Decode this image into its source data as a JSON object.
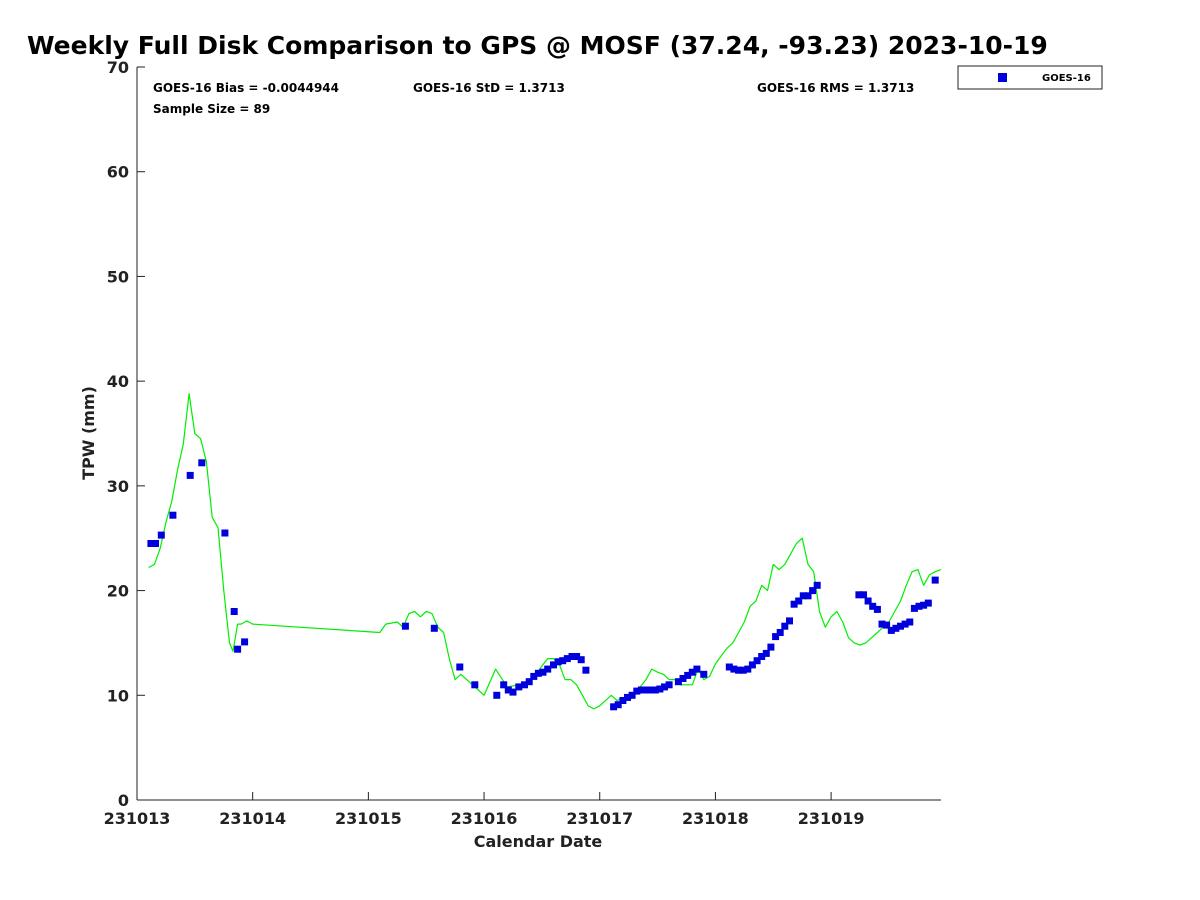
{
  "chart_data": {
    "type": "scatter",
    "title": "Weekly Full Disk Comparison to GPS @ MOSF (37.24, -93.23) 2023-10-19",
    "xlabel": "Calendar Date",
    "ylabel": "TPW (mm)",
    "xlim": [
      0,
      6.95
    ],
    "ylim": [
      0,
      70
    ],
    "y_ticks": [
      0,
      10,
      20,
      30,
      40,
      50,
      60,
      70
    ],
    "x_ticks": [
      {
        "value": 0,
        "label": "231013"
      },
      {
        "value": 1,
        "label": "231014"
      },
      {
        "value": 2,
        "label": "231015"
      },
      {
        "value": 3,
        "label": "231016"
      },
      {
        "value": 4,
        "label": "231017"
      },
      {
        "value": 5,
        "label": "231018"
      },
      {
        "value": 6,
        "label": "231019"
      }
    ],
    "stats": {
      "bias": "GOES-16 Bias = -0.0044944",
      "std": "GOES-16 StD = 1.3713",
      "rms": "GOES-16 RMS = 1.3713",
      "sample": "Sample Size = 89"
    },
    "legend": {
      "entries": [
        "GOES-16"
      ],
      "position": "outside-top-right"
    },
    "series": [
      {
        "name": "GPS",
        "kind": "line",
        "color": "#00ee00",
        "x": [
          0.1,
          0.15,
          0.2,
          0.25,
          0.3,
          0.35,
          0.4,
          0.45,
          0.5,
          0.55,
          0.6,
          0.65,
          0.7,
          0.75,
          0.8,
          0.83,
          0.87,
          0.9,
          0.95,
          1.0,
          2.1,
          2.15,
          2.25,
          2.3,
          2.35,
          2.4,
          2.45,
          2.5,
          2.55,
          2.6,
          2.65,
          2.7,
          2.75,
          2.8,
          2.85,
          2.9,
          2.95,
          3.0,
          3.1,
          3.2,
          3.3,
          3.35,
          3.4,
          3.45,
          3.5,
          3.55,
          3.6,
          3.65,
          3.7,
          3.75,
          3.8,
          3.85,
          3.9,
          3.95,
          4.0,
          4.1,
          4.15,
          4.2,
          4.25,
          4.3,
          4.35,
          4.4,
          4.45,
          4.5,
          4.55,
          4.6,
          4.65,
          4.7,
          4.75,
          4.8,
          4.85,
          4.9,
          4.95,
          5.0,
          5.1,
          5.15,
          5.2,
          5.25,
          5.3,
          5.35,
          5.4,
          5.45,
          5.5,
          5.55,
          5.6,
          5.65,
          5.7,
          5.75,
          5.8,
          5.85,
          5.9,
          5.95,
          6.0,
          6.05,
          6.1,
          6.15,
          6.2,
          6.25,
          6.3,
          6.35,
          6.4,
          6.45,
          6.5,
          6.55,
          6.6,
          6.65,
          6.7,
          6.75,
          6.8,
          6.85,
          6.9,
          6.95
        ],
        "y": [
          22.2,
          22.5,
          24.0,
          26.5,
          28.5,
          31.5,
          34.0,
          38.8,
          35.0,
          34.5,
          32.3,
          27.0,
          26.0,
          20.0,
          15.0,
          14.2,
          16.8,
          16.8,
          17.1,
          16.8,
          16.0,
          16.8,
          17.0,
          16.5,
          17.8,
          18.0,
          17.5,
          18.0,
          17.8,
          16.5,
          16.0,
          13.5,
          11.5,
          12.0,
          11.5,
          11.0,
          10.5,
          10.0,
          12.5,
          10.8,
          11.0,
          10.8,
          11.5,
          12.0,
          12.8,
          13.5,
          13.5,
          13.0,
          11.5,
          11.5,
          11.0,
          10.0,
          9.0,
          8.7,
          9.0,
          10.0,
          9.5,
          9.8,
          9.5,
          10.0,
          10.8,
          11.5,
          12.5,
          12.2,
          12.0,
          11.5,
          11.5,
          11.0,
          11.0,
          11.0,
          12.5,
          11.5,
          11.8,
          13.0,
          14.5,
          15.0,
          16.0,
          17.0,
          18.5,
          19.0,
          20.5,
          20.0,
          22.5,
          22.0,
          22.5,
          23.5,
          24.5,
          25.0,
          22.5,
          21.8,
          18.0,
          16.5,
          17.5,
          18.0,
          17.0,
          15.5,
          15.0,
          14.8,
          15.0,
          15.5,
          16.0,
          16.5,
          17.0,
          18.0,
          19.0,
          20.5,
          21.8,
          22.0,
          20.5,
          21.5,
          21.8,
          22.0
        ],
        "_note": "series illustrated"
      },
      {
        "name": "GOES-16",
        "kind": "scatter",
        "color": "#0000dd",
        "x": [
          0.12,
          0.16,
          0.21,
          0.31,
          0.46,
          0.56,
          0.76,
          0.84,
          0.87,
          0.93,
          2.32,
          2.57,
          2.79,
          2.92,
          3.11,
          3.17,
          3.21,
          3.25,
          3.3,
          3.35,
          3.39,
          3.43,
          3.47,
          3.51,
          3.55,
          3.6,
          3.64,
          3.68,
          3.72,
          3.76,
          3.8,
          3.84,
          3.88,
          4.12,
          4.16,
          4.2,
          4.24,
          4.28,
          4.32,
          4.36,
          4.4,
          4.44,
          4.48,
          4.52,
          4.56,
          4.6,
          4.68,
          4.72,
          4.76,
          4.8,
          4.84,
          4.9,
          5.12,
          5.16,
          5.2,
          5.24,
          5.28,
          5.32,
          5.36,
          5.4,
          5.44,
          5.48,
          5.52,
          5.56,
          5.6,
          5.64,
          5.68,
          5.72,
          5.76,
          5.8,
          5.84,
          5.88,
          6.24,
          6.28,
          6.32,
          6.36,
          6.4,
          6.44,
          6.48,
          6.52,
          6.56,
          6.6,
          6.64,
          6.68,
          6.72,
          6.76,
          6.8,
          6.84,
          6.9
        ],
        "y": [
          24.5,
          24.5,
          25.3,
          27.2,
          31.0,
          32.2,
          25.5,
          18.0,
          14.4,
          15.1,
          16.6,
          16.4,
          12.7,
          11.0,
          10.0,
          11.0,
          10.5,
          10.3,
          10.8,
          11.0,
          11.3,
          11.8,
          12.1,
          12.2,
          12.5,
          12.9,
          13.2,
          13.3,
          13.5,
          13.7,
          13.7,
          13.4,
          12.4,
          8.9,
          9.1,
          9.5,
          9.8,
          10.0,
          10.4,
          10.5,
          10.5,
          10.5,
          10.5,
          10.6,
          10.8,
          11.0,
          11.3,
          11.6,
          11.9,
          12.2,
          12.5,
          12.0,
          12.7,
          12.5,
          12.4,
          12.4,
          12.5,
          12.9,
          13.3,
          13.7,
          14.0,
          14.6,
          15.6,
          16.0,
          16.6,
          17.1,
          18.7,
          19.0,
          19.5,
          19.5,
          20.0,
          20.5,
          19.6,
          19.6,
          19.0,
          18.5,
          18.2,
          16.8,
          16.7,
          16.2,
          16.4,
          16.6,
          16.8,
          17.0,
          18.3,
          18.5,
          18.6,
          18.8,
          21.0
        ]
      }
    ]
  }
}
